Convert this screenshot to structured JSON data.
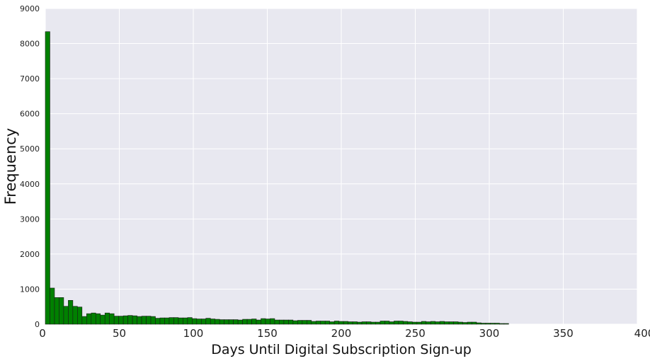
{
  "chart_data": {
    "type": "bar",
    "title": "",
    "xlabel": "Days Until Digital Subscription Sign-up",
    "ylabel": "Frequency",
    "xlim": [
      0,
      400
    ],
    "ylim": [
      0,
      9000
    ],
    "x_ticks": [
      "0",
      "50",
      "100",
      "150",
      "200",
      "250",
      "300",
      "350",
      "400"
    ],
    "y_ticks": [
      "0",
      "1000",
      "2000",
      "3000",
      "4000",
      "5000",
      "6000",
      "7000",
      "8000",
      "9000"
    ],
    "grid": true,
    "legend": "none",
    "bin_width": 3.1,
    "bin_start": 0,
    "bar_color": "#008000",
    "edge_color": "#1a1a1a",
    "background_color": "#e8e8f0",
    "grid_color": "#ffffff",
    "values": [
      8340,
      1030,
      760,
      760,
      510,
      680,
      510,
      490,
      220,
      300,
      320,
      300,
      260,
      320,
      300,
      230,
      230,
      240,
      250,
      240,
      220,
      230,
      230,
      220,
      170,
      180,
      180,
      190,
      190,
      180,
      180,
      190,
      160,
      150,
      150,
      170,
      150,
      140,
      130,
      130,
      130,
      130,
      120,
      140,
      140,
      150,
      120,
      160,
      150,
      160,
      120,
      120,
      120,
      120,
      100,
      110,
      110,
      110,
      80,
      90,
      90,
      90,
      70,
      90,
      80,
      80,
      70,
      70,
      60,
      70,
      70,
      60,
      60,
      90,
      90,
      70,
      90,
      90,
      80,
      70,
      60,
      60,
      80,
      70,
      80,
      70,
      80,
      70,
      70,
      70,
      60,
      50,
      60,
      60,
      40,
      30,
      30,
      30,
      30,
      20,
      20
    ]
  }
}
